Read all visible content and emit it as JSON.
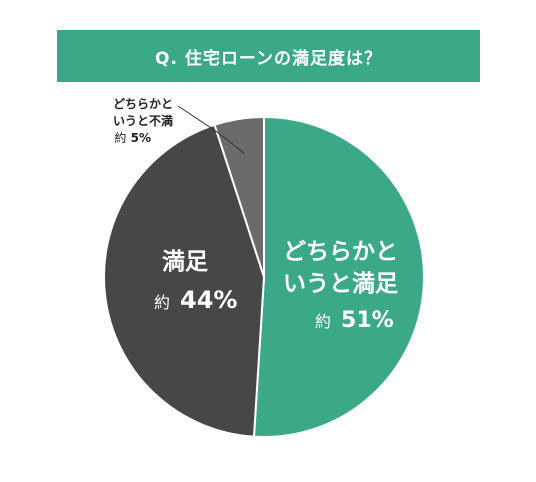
{
  "title": "Q. 住宅ローンの満足度は？",
  "colors": {
    "banner": "#3BA88A",
    "slice_satisfied_somewhat": "#3BA88A",
    "slice_satisfied": "#474747",
    "slice_dissatisfied_somewhat": "#6B6B6B",
    "slice_border": "#ffffff"
  },
  "chart_data": {
    "type": "pie",
    "slices": [
      {
        "label_line1": "どちらかと",
        "label_line2": "いうと満足",
        "label_line3": "",
        "value_text": "約 51%",
        "value_prefix": "約",
        "value_number": "51%",
        "value": 51,
        "color_key": "slice_satisfied_somewhat"
      },
      {
        "label_line1": "満足",
        "label_line2": "",
        "label_line3": "",
        "value_text": "約 44%",
        "value_prefix": "約",
        "value_number": "44%",
        "value": 44,
        "color_key": "slice_satisfied"
      },
      {
        "label_line1": "どちらかと",
        "label_line2": "いうと不満",
        "label_line3": "",
        "value_text": "約 5%",
        "value_prefix": "約",
        "value_number": "5%",
        "value": 5,
        "color_key": "slice_dissatisfied_somewhat"
      }
    ],
    "start_angle_deg": 0,
    "direction": "clockwise"
  }
}
